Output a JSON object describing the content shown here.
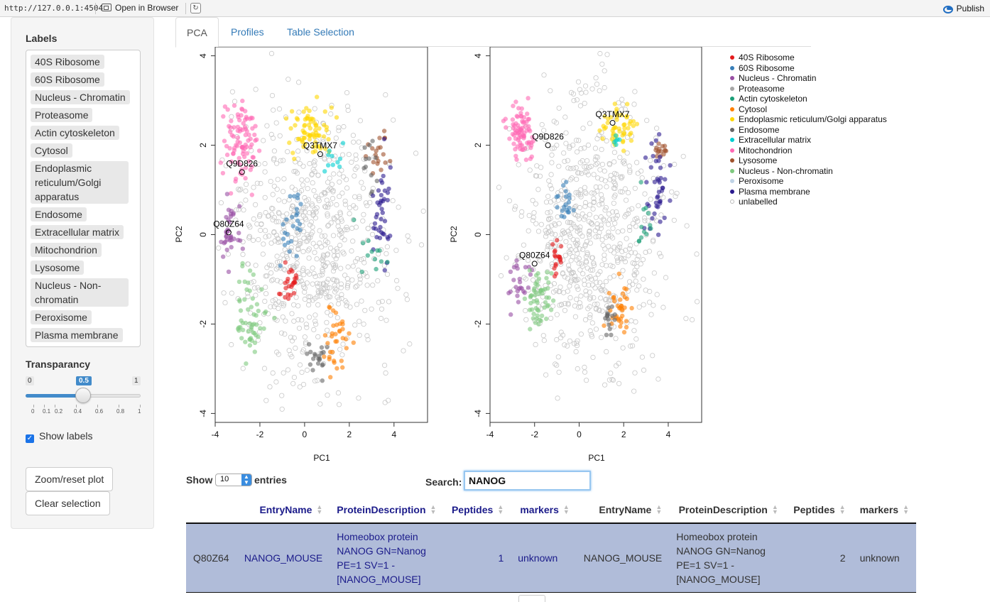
{
  "browser": {
    "url": "http://127.0.0.1:4504",
    "open_in_browser": "Open in Browser",
    "publish": "Publish"
  },
  "sidebar": {
    "labels_title": "Labels",
    "labels": [
      "40S Ribosome",
      "60S Ribosome",
      "Nucleus - Chromatin",
      "Proteasome",
      "Actin cytoskeleton",
      "Cytosol",
      "Endoplasmic reticulum/Golgi apparatus",
      "Endosome",
      "Extracellular matrix",
      "Mitochondrion",
      "Lysosome",
      "Nucleus - Non-chromatin",
      "Peroxisome",
      "Plasma membrane"
    ],
    "transparancy_title": "Transparancy",
    "slider": {
      "min": "0",
      "max": "1",
      "value": "0.5",
      "value_fraction": 0.5,
      "ticks": [
        "0",
        "0.1",
        "0.2",
        "0.4",
        "0.6",
        "0.8",
        "1"
      ]
    },
    "show_labels": "Show labels",
    "show_labels_checked": true,
    "zoom_button": "Zoom/reset plot",
    "clear_button": "Clear selection"
  },
  "tabs": [
    {
      "label": "PCA",
      "active": true
    },
    {
      "label": "Profiles",
      "active": false
    },
    {
      "label": "Table Selection",
      "active": false
    }
  ],
  "chart_data": {
    "type": "scatter",
    "xlabel": "PC1",
    "ylabel": "PC2",
    "xlim": [
      -4,
      5.5
    ],
    "ylim": [
      -4.2,
      4.2
    ],
    "x_ticks": [
      "-4",
      "-2",
      "0",
      "2",
      "4"
    ],
    "y_ticks": [
      "4",
      "2",
      "0",
      "-2",
      "-4"
    ],
    "legend_placement": "right",
    "legend": [
      {
        "name": "40S Ribosome",
        "color": "#e41a1c"
      },
      {
        "name": "60S Ribosome",
        "color": "#377eb8"
      },
      {
        "name": "Nucleus - Chromatin",
        "color": "#984ea3"
      },
      {
        "name": "Proteasome",
        "color": "#a6a6a6"
      },
      {
        "name": "Actin cytoskeleton",
        "color": "#1b9e77"
      },
      {
        "name": "Cytosol",
        "color": "#ff7f00"
      },
      {
        "name": "Endoplasmic reticulum/Golgi apparatus",
        "color": "#ffd700"
      },
      {
        "name": "Endosome",
        "color": "#666666"
      },
      {
        "name": "Extracellular matrix",
        "color": "#00ced1"
      },
      {
        "name": "Mitochondrion",
        "color": "#ff69b4"
      },
      {
        "name": "Lysosome",
        "color": "#a0522d"
      },
      {
        "name": "Nucleus - Non-chromatin",
        "color": "#7fc97f"
      },
      {
        "name": "Peroxisome",
        "color": "#bfd3e6"
      },
      {
        "name": "Plasma membrane",
        "color": "#2b1b8f"
      },
      {
        "name": "unlabelled",
        "color": "#cccccc"
      }
    ],
    "plots": [
      {
        "clusters": [
          {
            "series": "Mitochondrion",
            "cx": -2.9,
            "cy": 2.1,
            "sx": 0.35,
            "sy": 0.45,
            "n": 90
          },
          {
            "series": "Endoplasmic reticulum/Golgi apparatus",
            "cx": 0.3,
            "cy": 2.3,
            "sx": 0.5,
            "sy": 0.3,
            "n": 70
          },
          {
            "series": "Extracellular matrix",
            "cx": 1.4,
            "cy": 1.7,
            "sx": 0.4,
            "sy": 0.12,
            "n": 10
          },
          {
            "series": "Lysosome",
            "cx": 3.3,
            "cy": 1.8,
            "sx": 0.25,
            "sy": 0.25,
            "n": 20
          },
          {
            "series": "Endosome",
            "cx": 2.9,
            "cy": 1.5,
            "sx": 0.2,
            "sy": 0.4,
            "n": 12
          },
          {
            "series": "Plasma membrane",
            "cx": 3.4,
            "cy": 0.5,
            "sx": 0.25,
            "sy": 0.6,
            "n": 40
          },
          {
            "series": "Actin cytoskeleton",
            "cx": 3.0,
            "cy": -0.4,
            "sx": 0.4,
            "sy": 0.3,
            "n": 12
          },
          {
            "series": "Nucleus - Chromatin",
            "cx": -3.3,
            "cy": 0.0,
            "sx": 0.25,
            "sy": 0.3,
            "n": 35
          },
          {
            "series": "60S Ribosome",
            "cx": -0.6,
            "cy": 0.2,
            "sx": 0.3,
            "sy": 0.4,
            "n": 25
          },
          {
            "series": "40S Ribosome",
            "cx": -0.7,
            "cy": -1.1,
            "sx": 0.15,
            "sy": 0.2,
            "n": 25
          },
          {
            "series": "Nucleus - Non-chromatin",
            "cx": -2.3,
            "cy": -1.8,
            "sx": 0.35,
            "sy": 0.5,
            "n": 55
          },
          {
            "series": "Cytosol",
            "cx": 1.3,
            "cy": -2.4,
            "sx": 0.35,
            "sy": 0.4,
            "n": 35
          },
          {
            "series": "Endosome",
            "cx": 0.6,
            "cy": -2.7,
            "sx": 0.2,
            "sy": 0.25,
            "n": 20
          },
          {
            "series": "unlabelled",
            "cx": 0.3,
            "cy": -0.2,
            "sx": 1.9,
            "sy": 1.5,
            "n": 700
          }
        ],
        "annotations": [
          {
            "label": "Q3TMX7",
            "x": 0.7,
            "y": 1.8
          },
          {
            "label": "Q9D826",
            "x": -2.8,
            "y": 1.4
          },
          {
            "label": "Q80Z64",
            "x": -3.4,
            "y": 0.05
          }
        ]
      },
      {
        "clusters": [
          {
            "series": "Mitochondrion",
            "cx": -2.6,
            "cy": 2.3,
            "sx": 0.25,
            "sy": 0.3,
            "n": 80
          },
          {
            "series": "Endoplasmic reticulum/Golgi apparatus",
            "cx": 1.8,
            "cy": 2.4,
            "sx": 0.45,
            "sy": 0.25,
            "n": 50
          },
          {
            "series": "Extracellular matrix",
            "cx": 1.8,
            "cy": 2.1,
            "sx": 0.15,
            "sy": 0.1,
            "n": 6
          },
          {
            "series": "Lysosome",
            "cx": 3.6,
            "cy": 1.8,
            "sx": 0.2,
            "sy": 0.15,
            "n": 15
          },
          {
            "series": "Plasma membrane",
            "cx": 3.5,
            "cy": 1.1,
            "sx": 0.25,
            "sy": 0.5,
            "n": 40
          },
          {
            "series": "Actin cytoskeleton",
            "cx": 2.9,
            "cy": 0.2,
            "sx": 0.2,
            "sy": 0.4,
            "n": 12
          },
          {
            "series": "60S Ribosome",
            "cx": -0.7,
            "cy": 0.6,
            "sx": 0.2,
            "sy": 0.2,
            "n": 20
          },
          {
            "series": "40S Ribosome",
            "cx": -1.0,
            "cy": -0.5,
            "sx": 0.15,
            "sy": 0.2,
            "n": 18
          },
          {
            "series": "Nucleus - Chromatin",
            "cx": -2.7,
            "cy": -1.0,
            "sx": 0.25,
            "sy": 0.3,
            "n": 25
          },
          {
            "series": "Nucleus - Non-chromatin",
            "cx": -1.9,
            "cy": -1.4,
            "sx": 0.3,
            "sy": 0.35,
            "n": 55
          },
          {
            "series": "Cytosol",
            "cx": 1.8,
            "cy": -1.7,
            "sx": 0.25,
            "sy": 0.3,
            "n": 35
          },
          {
            "series": "Endosome",
            "cx": 1.3,
            "cy": -1.9,
            "sx": 0.15,
            "sy": 0.2,
            "n": 15
          },
          {
            "series": "unlabelled",
            "cx": 0.6,
            "cy": 0.0,
            "sx": 1.6,
            "sy": 1.5,
            "n": 700
          }
        ],
        "annotations": [
          {
            "label": "Q3TMX7",
            "x": 1.5,
            "y": 2.5
          },
          {
            "label": "Q9D826",
            "x": -1.4,
            "y": 2.0
          },
          {
            "label": "Q80Z64",
            "x": -2.0,
            "y": -0.65
          }
        ]
      }
    ]
  },
  "table": {
    "show": "Show",
    "entries_value": "10",
    "entries": "entries",
    "search_label": "Search:",
    "search_value": "NANOG",
    "headers": [
      "",
      "EntryName",
      "ProteinDescription",
      "Peptides",
      "markers",
      "EntryName",
      "ProteinDescription",
      "Peptides",
      "markers"
    ],
    "rows": [
      [
        "Q80Z64",
        "NANOG_MOUSE",
        "Homeobox protein NANOG GN=Nanog PE=1 SV=1 - [NANOG_MOUSE]",
        "1",
        "unknown",
        "NANOG_MOUSE",
        "Homeobox protein NANOG GN=Nanog PE=1 SV=1 - [NANOG_MOUSE]",
        "2",
        "unknown"
      ]
    ]
  }
}
